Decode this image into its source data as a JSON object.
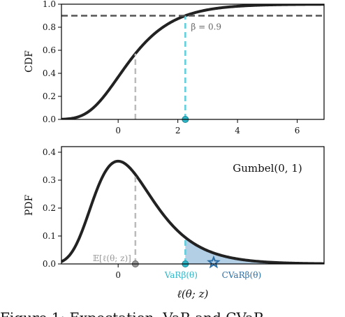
{
  "chart_data": [
    {
      "type": "line",
      "ylabel": "CDF",
      "xlim": [
        -1.9,
        6.9
      ],
      "ylim": [
        0,
        1.0
      ],
      "xticks": [
        "0",
        "2",
        "4",
        "6"
      ],
      "xtick_values": [
        0,
        2,
        4,
        6
      ],
      "yticks": [
        "0.0",
        "0.2",
        "0.4",
        "0.6",
        "0.8",
        "1.0"
      ],
      "ytick_values": [
        0,
        0.2,
        0.4,
        0.6,
        0.8,
        1.0
      ],
      "series": [
        {
          "distribution": "gumbel",
          "mu": 0,
          "beta": 1,
          "function": "cdf"
        }
      ],
      "hline": {
        "y": 0.9,
        "label": "β = 0.9"
      },
      "vlines": [
        {
          "x": 0.5772,
          "color": "#bbbbbb",
          "role": "mean"
        },
        {
          "x": 2.2504,
          "color": "#5ecfdd",
          "role": "var"
        }
      ],
      "markers": [
        {
          "x": 2.2504,
          "y": 0,
          "shape": "circle",
          "color": "#2fb7c8"
        }
      ]
    },
    {
      "type": "line",
      "ylabel": "PDF",
      "xlabel": "ℓ(θ; z)",
      "xlim": [
        -1.9,
        6.9
      ],
      "ylim": [
        0,
        0.42
      ],
      "xticks": [
        "0"
      ],
      "xtick_values": [
        0
      ],
      "yticks": [
        "0.0",
        "0.1",
        "0.2",
        "0.3",
        "0.4"
      ],
      "ytick_values": [
        0,
        0.1,
        0.2,
        0.3,
        0.4
      ],
      "series": [
        {
          "distribution": "gumbel",
          "mu": 0,
          "beta": 1,
          "function": "pdf"
        }
      ],
      "legend_text": "Gumbel(0, 1)",
      "shaded_tail_from_x": 2.2504,
      "vlines": [
        {
          "x": 0.5772,
          "color": "#bbbbbb",
          "role": "mean"
        },
        {
          "x": 2.2504,
          "color": "#5ecfdd",
          "role": "var"
        }
      ],
      "markers": [
        {
          "x": 0.5772,
          "y": 0,
          "shape": "circle",
          "color": "#888888",
          "label": "𝔼[ℓ(θ; z)]"
        },
        {
          "x": 2.2504,
          "y": 0,
          "shape": "circle",
          "color": "#2fb7c8",
          "label": "VaRβ(θ)"
        },
        {
          "x": 3.2,
          "y": 0,
          "shape": "star",
          "color": "#2c6fa6",
          "label": "CVaRβ(θ)"
        }
      ]
    }
  ],
  "caption": "Figure 1: Expectation, VaR and CVaR"
}
